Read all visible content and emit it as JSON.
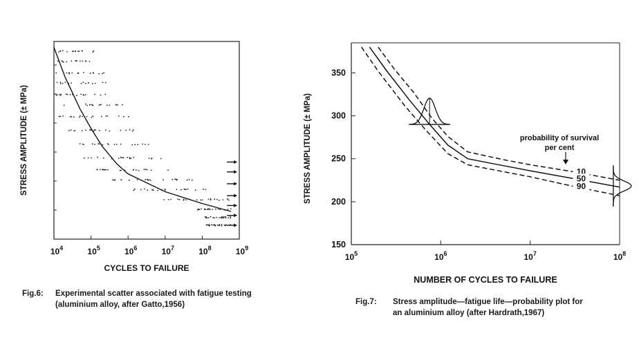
{
  "figures": {
    "fig6": {
      "number": "Fig.6:",
      "caption_line1": "Experimental scatter associated with fatigue testing",
      "caption_line2": "(aluminium alloy, after Gatto,1956)"
    },
    "fig7": {
      "number": "Fig.7:",
      "caption_line1": "Stress amplitude—fatigue life—probability plot for",
      "caption_line2": "an aluminium alloy (after Hardrath,1967)"
    }
  },
  "chart_data": [
    {
      "type": "scatter",
      "xlabel": "CYCLES TO FAILURE",
      "ylabel": "STRESS AMPLITUDE (± MPa)",
      "x_scale": "log",
      "xlim": [
        10000,
        1000000000
      ],
      "x_tick_base": "10",
      "x_tick_exponents": [
        "4",
        "5",
        "6",
        "7",
        "8",
        "9"
      ],
      "y_ticks_labeled": false,
      "grid": false,
      "mean_curve": [
        {
          "x": 10000,
          "y": 0.97
        },
        {
          "x": 20000,
          "y": 0.82
        },
        {
          "x": 50000,
          "y": 0.66
        },
        {
          "x": 100000,
          "y": 0.56
        },
        {
          "x": 200000,
          "y": 0.47
        },
        {
          "x": 500000,
          "y": 0.38
        },
        {
          "x": 1000000,
          "y": 0.33
        },
        {
          "x": 10000000,
          "y": 0.24
        },
        {
          "x": 100000000,
          "y": 0.18
        },
        {
          "x": 600000000,
          "y": 0.14
        }
      ],
      "scatter_rows_y": [
        0.95,
        0.9,
        0.84,
        0.79,
        0.73,
        0.68,
        0.62,
        0.55,
        0.48,
        0.41,
        0.35,
        0.3,
        0.25,
        0.2,
        0.15,
        0.11,
        0.07
      ],
      "runout_markers_x": 600000000,
      "runout_markers_y": [
        0.39,
        0.34,
        0.28,
        0.22,
        0.17,
        0.12,
        0.07
      ]
    },
    {
      "type": "line",
      "xlabel": "NUMBER OF CYCLES TO FAILURE",
      "ylabel": "STRESS AMPLITUDE (± MPa)",
      "x_scale": "log",
      "xlim": [
        100000,
        100000000
      ],
      "ylim": [
        150,
        385
      ],
      "x_tick_base": "10",
      "x_tick_exponents": [
        "5",
        "6",
        "7",
        "8"
      ],
      "y_ticks": [
        "150",
        "200",
        "250",
        "300",
        "350"
      ],
      "grid": false,
      "annotation_line1": "probability of survival",
      "annotation_line2": "per cent",
      "series": [
        {
          "name": "10",
          "style": "dashed",
          "points": [
            {
              "x": 200000,
              "y": 380
            },
            {
              "x": 300000,
              "y": 355
            },
            {
              "x": 500000,
              "y": 327
            },
            {
              "x": 800000,
              "y": 297
            },
            {
              "x": 1200000,
              "y": 276
            },
            {
              "x": 2000000,
              "y": 258
            },
            {
              "x": 5000000,
              "y": 249
            },
            {
              "x": 10000000,
              "y": 243
            },
            {
              "x": 30000000,
              "y": 235
            },
            {
              "x": 100000000,
              "y": 225
            }
          ]
        },
        {
          "name": "50",
          "style": "solid",
          "points": [
            {
              "x": 160000,
              "y": 380
            },
            {
              "x": 250000,
              "y": 352
            },
            {
              "x": 450000,
              "y": 318
            },
            {
              "x": 750000,
              "y": 290
            },
            {
              "x": 1200000,
              "y": 266
            },
            {
              "x": 2000000,
              "y": 250
            },
            {
              "x": 5000000,
              "y": 242
            },
            {
              "x": 10000000,
              "y": 236
            },
            {
              "x": 30000000,
              "y": 227
            },
            {
              "x": 100000000,
              "y": 217
            }
          ]
        },
        {
          "name": "90",
          "style": "dashed",
          "points": [
            {
              "x": 130000,
              "y": 380
            },
            {
              "x": 200000,
              "y": 352
            },
            {
              "x": 400000,
              "y": 311
            },
            {
              "x": 700000,
              "y": 282
            },
            {
              "x": 1200000,
              "y": 256
            },
            {
              "x": 2000000,
              "y": 243
            },
            {
              "x": 5000000,
              "y": 235
            },
            {
              "x": 10000000,
              "y": 229
            },
            {
              "x": 30000000,
              "y": 218
            },
            {
              "x": 100000000,
              "y": 207
            }
          ]
        }
      ],
      "distribution_at_x": [
        750000,
        85000000
      ]
    }
  ]
}
